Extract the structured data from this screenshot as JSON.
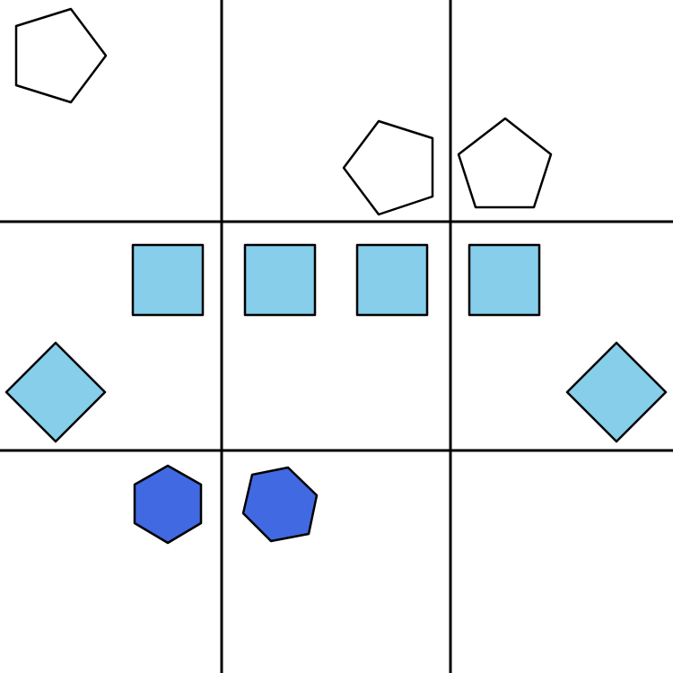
{
  "colors": {
    "background": "#ffffff",
    "grid_line": "#000000",
    "outline": "#000000",
    "pentagon_fill": "#ffffff",
    "square_fill": "#87ceeb",
    "diamond_fill": "#87ceeb",
    "hexagon_fill": "#4169e1"
  },
  "grid": {
    "rows": 3,
    "columns": 3
  },
  "shapes": [
    {
      "kind": "pentagon",
      "fill": "white",
      "row": 1,
      "column": 1
    },
    {
      "kind": "pentagon",
      "fill": "white",
      "row": 1,
      "column": 2
    },
    {
      "kind": "pentagon",
      "fill": "white",
      "row": 1,
      "column": 3
    },
    {
      "kind": "square",
      "fill": "light-blue",
      "row": 2,
      "column": 1
    },
    {
      "kind": "square",
      "fill": "light-blue",
      "row": 2,
      "column": 2
    },
    {
      "kind": "square",
      "fill": "light-blue",
      "row": 2,
      "column": 2
    },
    {
      "kind": "square",
      "fill": "light-blue",
      "row": 2,
      "column": 3
    },
    {
      "kind": "diamond",
      "fill": "light-blue",
      "row": 2,
      "column": 1
    },
    {
      "kind": "diamond",
      "fill": "light-blue",
      "row": 2,
      "column": 3
    },
    {
      "kind": "hexagon",
      "fill": "royal-blue",
      "row": 3,
      "column": 1
    },
    {
      "kind": "hexagon",
      "fill": "royal-blue",
      "row": 3,
      "column": 2
    }
  ]
}
